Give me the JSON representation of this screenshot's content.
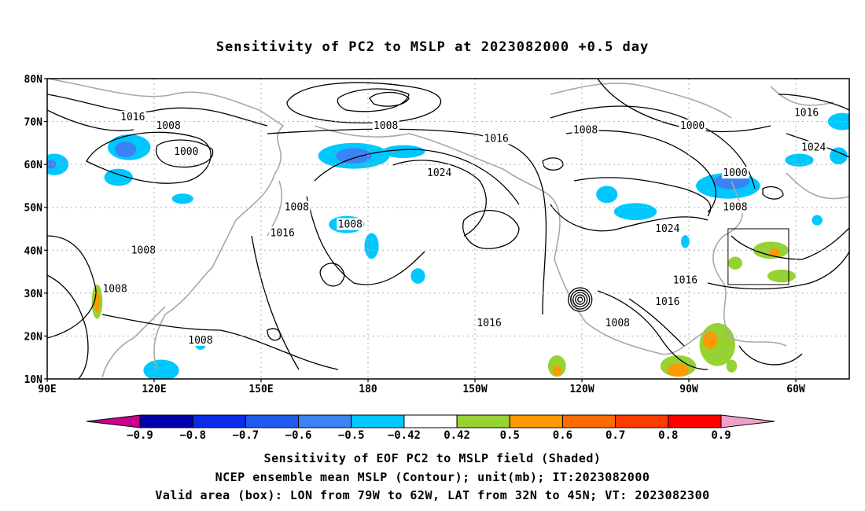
{
  "title": "Sensitivity of PC2 to MSLP at 2023082000 +0.5 day",
  "captions": [
    "Sensitivity of EOF PC2 to MSLP field (Shaded)",
    "NCEP ensemble mean MSLP (Contour); unit(mb); IT:2023082000",
    "Valid area (box): LON from 79W to 62W, LAT from 32N to 45N; VT: 2023082300"
  ],
  "map": {
    "lat_labels": [
      "80N",
      "70N",
      "60N",
      "50N",
      "40N",
      "30N",
      "20N",
      "10N"
    ],
    "lat_values": [
      80,
      70,
      60,
      50,
      40,
      30,
      20,
      10
    ],
    "lon_labels": [
      "90E",
      "120E",
      "150E",
      "180",
      "150W",
      "120W",
      "90W",
      "60W"
    ],
    "lon_values": [
      90,
      120,
      150,
      180,
      210,
      240,
      270,
      300
    ],
    "lon_range": [
      90,
      315
    ],
    "lat_range": [
      10,
      80
    ],
    "valid_box": {
      "lon": [
        281,
        298
      ],
      "lat": [
        32,
        45
      ]
    },
    "contour_labels": [
      {
        "text": "1016",
        "lon": 114,
        "lat": 71
      },
      {
        "text": "1008",
        "lon": 124,
        "lat": 69
      },
      {
        "text": "1000",
        "lon": 129,
        "lat": 63
      },
      {
        "text": "1008",
        "lon": 185,
        "lat": 69
      },
      {
        "text": "1008",
        "lon": 241,
        "lat": 68
      },
      {
        "text": "1016",
        "lon": 216,
        "lat": 66
      },
      {
        "text": "1000",
        "lon": 271,
        "lat": 69
      },
      {
        "text": "1016",
        "lon": 303,
        "lat": 72
      },
      {
        "text": "1024",
        "lon": 305,
        "lat": 64
      },
      {
        "text": "1024",
        "lon": 200,
        "lat": 58
      },
      {
        "text": "1000",
        "lon": 283,
        "lat": 58
      },
      {
        "text": "1008",
        "lon": 160,
        "lat": 50
      },
      {
        "text": "1008",
        "lon": 283,
        "lat": 50
      },
      {
        "text": "1016",
        "lon": 156,
        "lat": 44
      },
      {
        "text": "1008",
        "lon": 175,
        "lat": 46
      },
      {
        "text": "1024",
        "lon": 264,
        "lat": 45
      },
      {
        "text": "1008",
        "lon": 117,
        "lat": 40
      },
      {
        "text": "1008",
        "lon": 109,
        "lat": 31
      },
      {
        "text": "1016",
        "lon": 269,
        "lat": 33
      },
      {
        "text": "1016",
        "lon": 264,
        "lat": 28
      },
      {
        "text": "1016",
        "lon": 214,
        "lat": 23
      },
      {
        "text": "1008",
        "lon": 250,
        "lat": 23
      },
      {
        "text": "1008",
        "lon": 133,
        "lat": 19
      }
    ],
    "shading": [
      {
        "level": "-0.5",
        "lon": 113,
        "lat": 64,
        "rx": 6,
        "ry": 3
      },
      {
        "level": "-0.6",
        "lon": 112,
        "lat": 63.5,
        "rx": 3,
        "ry": 1.8
      },
      {
        "level": "-0.5",
        "lon": 92,
        "lat": 60,
        "rx": 4,
        "ry": 2.5
      },
      {
        "level": "-0.6",
        "lon": 91,
        "lat": 60,
        "rx": 1.5,
        "ry": 1
      },
      {
        "level": "-0.5",
        "lon": 110,
        "lat": 57,
        "rx": 4,
        "ry": 2
      },
      {
        "level": "-0.5",
        "lon": 128,
        "lat": 52,
        "rx": 3,
        "ry": 1.2
      },
      {
        "level": "-0.5",
        "lon": 176,
        "lat": 62,
        "rx": 10,
        "ry": 3
      },
      {
        "level": "-0.6",
        "lon": 176,
        "lat": 62,
        "rx": 5,
        "ry": 1.8
      },
      {
        "level": "-0.5",
        "lon": 190,
        "lat": 63,
        "rx": 6,
        "ry": 1.5
      },
      {
        "level": "-0.5",
        "lon": 174,
        "lat": 46,
        "rx": 5,
        "ry": 2
      },
      {
        "level": "-0.5",
        "lon": 181,
        "lat": 41,
        "rx": 2,
        "ry": 3
      },
      {
        "level": "-0.5",
        "lon": 194,
        "lat": 34,
        "rx": 2,
        "ry": 1.8
      },
      {
        "level": "-0.5",
        "lon": 255,
        "lat": 49,
        "rx": 6,
        "ry": 2
      },
      {
        "level": "-0.5",
        "lon": 247,
        "lat": 53,
        "rx": 3,
        "ry": 2
      },
      {
        "level": "-0.5",
        "lon": 269,
        "lat": 42,
        "rx": 1.2,
        "ry": 1.5
      },
      {
        "level": "-0.5",
        "lon": 281,
        "lat": 55,
        "rx": 9,
        "ry": 3
      },
      {
        "level": "-0.6",
        "lon": 282,
        "lat": 56,
        "rx": 5,
        "ry": 1.8
      },
      {
        "level": "-0.5",
        "lon": 301,
        "lat": 61,
        "rx": 4,
        "ry": 1.5
      },
      {
        "level": "-0.5",
        "lon": 313,
        "lat": 70,
        "rx": 4,
        "ry": 2
      },
      {
        "level": "-0.5",
        "lon": 312,
        "lat": 62,
        "rx": 2.5,
        "ry": 2
      },
      {
        "level": "-0.5",
        "lon": 306,
        "lat": 47,
        "rx": 1.5,
        "ry": 1.2
      },
      {
        "level": "-0.5",
        "lon": 133,
        "lat": 18,
        "rx": 1.5,
        "ry": 1.2
      },
      {
        "level": "-0.5",
        "lon": 122,
        "lat": 12,
        "rx": 5,
        "ry": 2.5
      },
      {
        "level": "0.5",
        "lon": 104,
        "lat": 28,
        "rx": 1.5,
        "ry": 4
      },
      {
        "level": "0.6",
        "lon": 104,
        "lat": 28,
        "rx": 0.8,
        "ry": 2.5
      },
      {
        "level": "0.5",
        "lon": 283,
        "lat": 37,
        "rx": 2,
        "ry": 1.5
      },
      {
        "level": "0.5",
        "lon": 293,
        "lat": 40,
        "rx": 5,
        "ry": 2
      },
      {
        "level": "0.6",
        "lon": 294,
        "lat": 39.5,
        "rx": 1.5,
        "ry": 1
      },
      {
        "level": "0.5",
        "lon": 296,
        "lat": 34,
        "rx": 4,
        "ry": 1.5
      },
      {
        "level": "0.5",
        "lon": 278,
        "lat": 18,
        "rx": 5,
        "ry": 5
      },
      {
        "level": "0.6",
        "lon": 276,
        "lat": 19,
        "rx": 2,
        "ry": 2
      },
      {
        "level": "0.5",
        "lon": 267,
        "lat": 13,
        "rx": 5,
        "ry": 2.5
      },
      {
        "level": "0.6",
        "lon": 267,
        "lat": 12,
        "rx": 3,
        "ry": 1.5
      },
      {
        "level": "0.5",
        "lon": 233,
        "lat": 13,
        "rx": 2.5,
        "ry": 2.5
      },
      {
        "level": "0.6",
        "lon": 233,
        "lat": 12,
        "rx": 1.2,
        "ry": 1.2
      },
      {
        "level": "0.5",
        "lon": 282,
        "lat": 13,
        "rx": 1.5,
        "ry": 1.5
      }
    ]
  },
  "colorbar": {
    "labels": [
      "-0.9",
      "-0.8",
      "-0.7",
      "-0.6",
      "-0.5",
      "-0.42",
      "0.42",
      "0.5",
      "0.6",
      "0.7",
      "0.8",
      "0.9"
    ],
    "colors": [
      "#0000aa",
      "#0a2be8",
      "#1e5af0",
      "#3c82f5",
      "#00c8ff",
      "#ffffff",
      "#96d232",
      "#ff9900",
      "#ff6a00",
      "#ff3c00",
      "#ff0000"
    ],
    "low_end_color": "#c8008c",
    "high_end_color": "#f0a0c8"
  }
}
